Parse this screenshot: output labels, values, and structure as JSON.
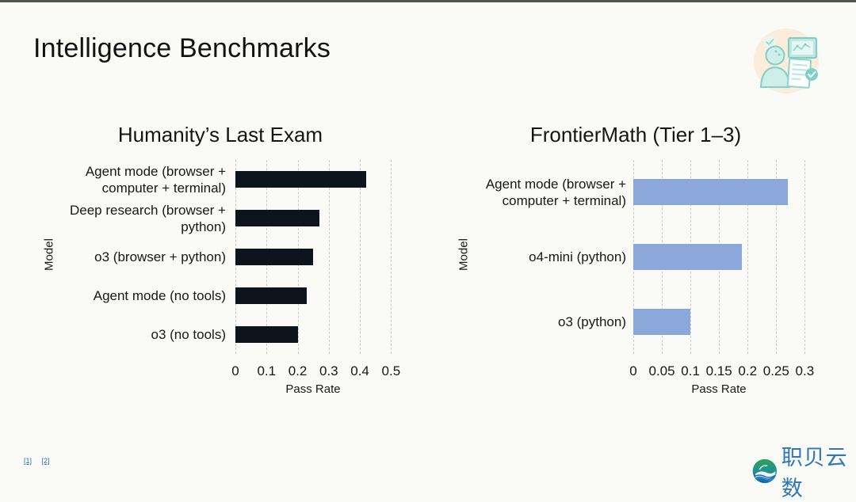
{
  "page": {
    "title": "Intelligence Benchmarks",
    "footnotes": [
      "[1]",
      "[2]"
    ],
    "logo_text": "职贝云数",
    "colors": {
      "background": "#fafbf7",
      "top_strip": "#51564f",
      "dark_bar": "#0d141c",
      "blue_bar": "#8ca7da",
      "link_blue": "#2b6cb5",
      "logo_blue": "#2f77b6",
      "gridline": "#c9c9c9"
    }
  },
  "chart_data": [
    {
      "type": "bar",
      "orientation": "horizontal",
      "title": "Humanity’s Last Exam",
      "xlabel": "Pass Rate",
      "ylabel": "Model",
      "categories": [
        "Agent mode (browser +\ncomputer + terminal)",
        "Deep research (browser +\npython)",
        "o3 (browser + python)",
        "Agent mode (no tools)",
        "o3 (no tools)"
      ],
      "values": [
        0.42,
        0.27,
        0.25,
        0.23,
        0.2
      ],
      "xlim": [
        0,
        0.55
      ],
      "xticks": [
        0,
        0.1,
        0.2,
        0.3,
        0.4,
        0.5
      ],
      "xtick_labels": [
        "0",
        "0.1",
        "0.2",
        "0.3",
        "0.4",
        "0.5"
      ],
      "bar_color": "#0d141c",
      "grid": "dashed-vertical"
    },
    {
      "type": "bar",
      "orientation": "horizontal",
      "title": "FrontierMath (Tier 1–3)",
      "xlabel": "Pass Rate",
      "ylabel": "Model",
      "categories": [
        "Agent mode (browser +\ncomputer + terminal)",
        "o4-mini (python)",
        "o3 (python)"
      ],
      "values": [
        0.27,
        0.19,
        0.1
      ],
      "xlim": [
        0,
        0.33
      ],
      "xticks": [
        0,
        0.05,
        0.1,
        0.15,
        0.2,
        0.25,
        0.3
      ],
      "xtick_labels": [
        "0",
        "0.05",
        "0.1",
        "0.15",
        "0.2",
        "0.25",
        "0.3"
      ],
      "bar_color": "#8ca7da",
      "grid": "dashed-vertical"
    }
  ]
}
